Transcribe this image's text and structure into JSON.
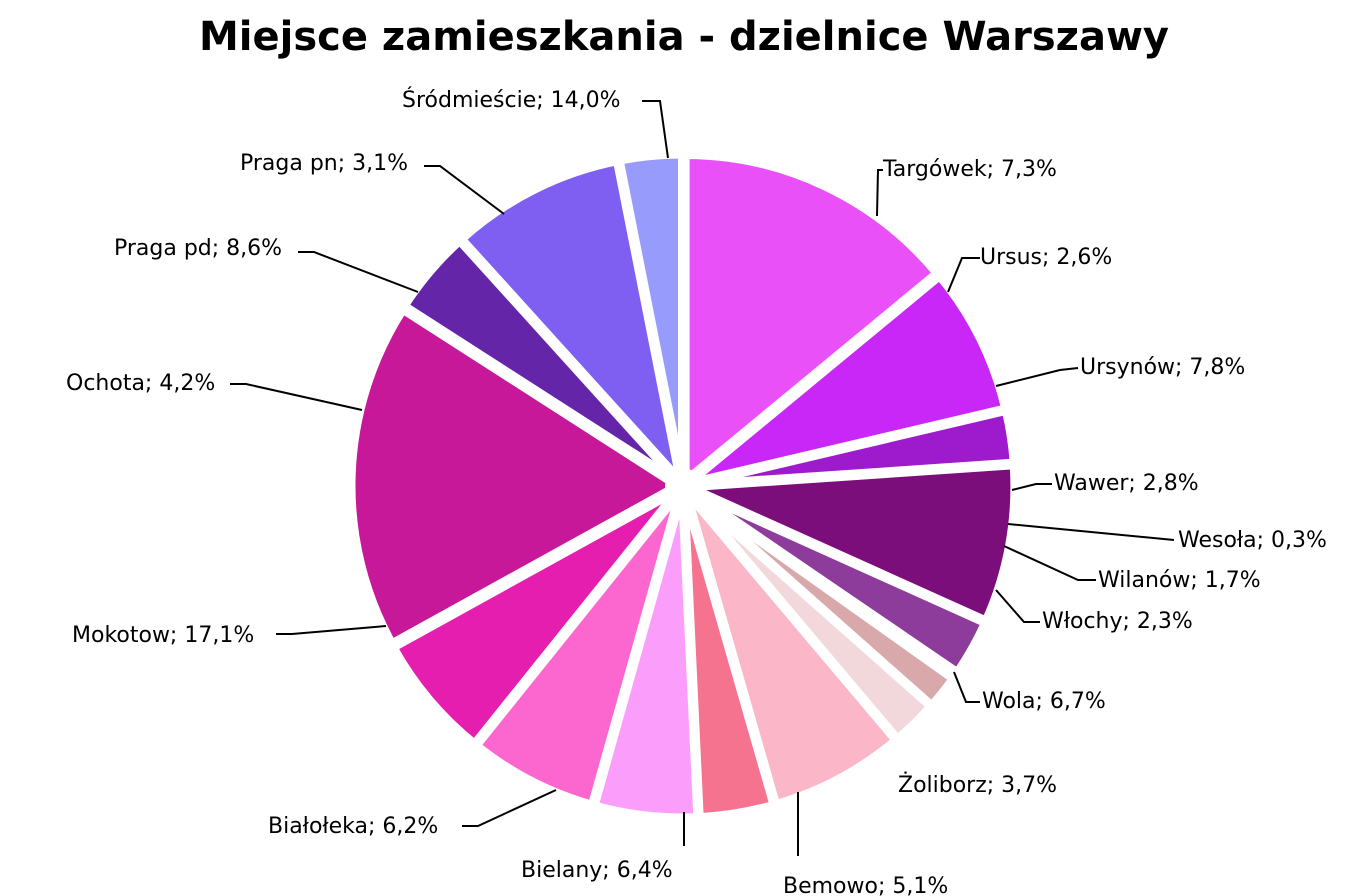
{
  "chart_data": {
    "type": "pie",
    "title": "Miejsce zamieszkania - dzielnice Warszawy",
    "slices": [
      {
        "label": "Śródmieście; 14,0%",
        "value": 14.0,
        "color": "#ea50f8"
      },
      {
        "label": "Targówek; 7,3%",
        "value": 7.3,
        "color": "#c927f7"
      },
      {
        "label": "Ursus; 2,6%",
        "value": 2.6,
        "color": "#9d1bcc"
      },
      {
        "label": "Ursynów; 7,8%",
        "value": 7.8,
        "color": "#7c0e7c"
      },
      {
        "label": "Wawer; 2,8%",
        "value": 2.8,
        "color": "#8e3c9b"
      },
      {
        "label": "Wesoła; 0,3%",
        "value": 0.3,
        "color": "#5a3a7a"
      },
      {
        "label": "Wilanów; 1,7%",
        "value": 1.7,
        "color": "#d9a8ab"
      },
      {
        "label": "Włochy; 2,3%",
        "value": 2.3,
        "color": "#f2d8da"
      },
      {
        "label": "Wola; 6,7%",
        "value": 6.7,
        "color": "#fbb6c8"
      },
      {
        "label": "Żoliborz; 3,7%",
        "value": 3.7,
        "color": "#f5738f"
      },
      {
        "label": "Bemowo; 5,1%",
        "value": 5.1,
        "color": "#fb9efb"
      },
      {
        "label": "Bielany; 6,4%",
        "value": 6.4,
        "color": "#fb67cf"
      },
      {
        "label": "Białołeka; 6,2%",
        "value": 6.2,
        "color": "#e51eb0"
      },
      {
        "label": "Mokotow; 17,1%",
        "value": 17.1,
        "color": "#c8189a"
      },
      {
        "label": "Ochota; 4,2%",
        "value": 4.2,
        "color": "#6425a8"
      },
      {
        "label": "Praga pd; 8,6%",
        "value": 8.6,
        "color": "#7f5ef2"
      },
      {
        "label": "Praga pn; 3,1%",
        "value": 3.1,
        "color": "#979bfb"
      }
    ]
  }
}
